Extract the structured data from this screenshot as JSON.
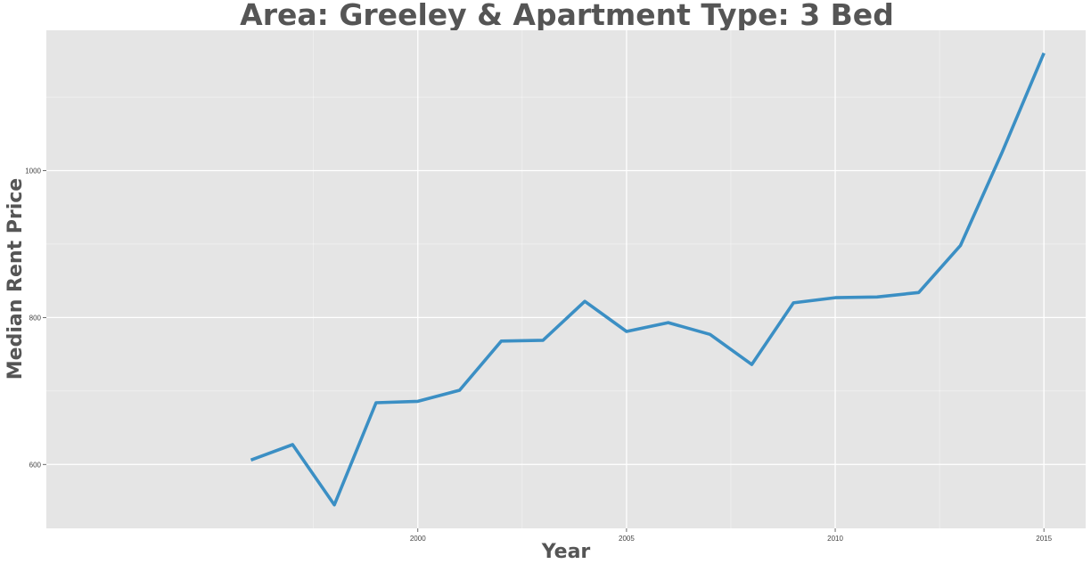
{
  "chart_data": {
    "type": "line",
    "title": "Area: Greeley & Apartment Type: 3 Bed",
    "xlabel": "Year",
    "ylabel": "Median Rent Price",
    "x": [
      1996,
      1997,
      1998,
      1999,
      2000,
      2001,
      2002,
      2003,
      2004,
      2005,
      2006,
      2007,
      2008,
      2009,
      2010,
      2011,
      2012,
      2013,
      2014,
      2015
    ],
    "series": [
      {
        "values": [
          606,
          627,
          545,
          684,
          686,
          701,
          768,
          769,
          822,
          781,
          793,
          777,
          736,
          820,
          827,
          828,
          834,
          898,
          1025,
          1160
        ]
      }
    ],
    "xlim": [
      1991.1,
      2016.0
    ],
    "ylim": [
      513,
      1191
    ],
    "x_ticks": [
      2000,
      2005,
      2010,
      2015
    ],
    "y_ticks": [
      600,
      800,
      1000
    ],
    "grid": true,
    "colors": {
      "line": "#3b8fc4",
      "panel": "#e5e5e5",
      "grid": "#ffffff"
    }
  }
}
